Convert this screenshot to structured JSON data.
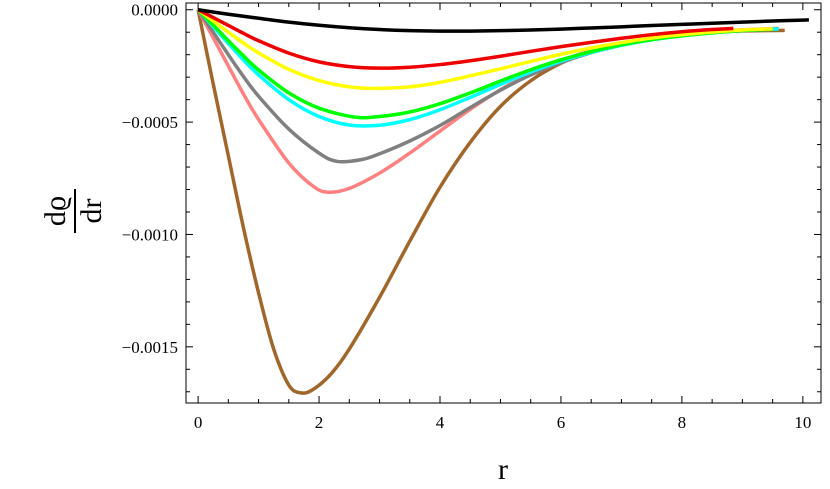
{
  "chart_data": {
    "type": "line",
    "title": "",
    "xlabel": "r",
    "ylabel_numerator": "dϱ",
    "ylabel_denominator": "dr",
    "xlim": [
      -0.2,
      10.3
    ],
    "ylim": [
      -0.00175,
      3e-05
    ],
    "xticks": [
      0,
      2,
      4,
      6,
      8,
      10
    ],
    "xtick_labels": [
      "0",
      "2",
      "4",
      "6",
      "8",
      "10"
    ],
    "yticks": [
      0.0,
      -0.0005,
      -0.001,
      -0.0015
    ],
    "ytick_labels": [
      "0.0000",
      "−0.0005",
      "−0.0010",
      "−0.0015"
    ],
    "grid": false,
    "legend": "none",
    "series": [
      {
        "color": "#000000",
        "x": [
          0,
          0.5,
          1,
          1.5,
          2,
          2.5,
          3,
          3.5,
          4,
          4.5,
          5,
          5.5,
          6,
          6.5,
          7,
          7.5,
          8,
          8.5,
          9,
          9.5,
          10,
          10.1
        ],
        "y": [
          0,
          -2e-05,
          -3.8e-05,
          -5.5e-05,
          -6.9e-05,
          -8e-05,
          -8.8e-05,
          -9.3e-05,
          -9.5e-05,
          -9.5e-05,
          -9.3e-05,
          -9e-05,
          -8.6e-05,
          -8.1e-05,
          -7.6e-05,
          -7e-05,
          -6.5e-05,
          -6e-05,
          -5.5e-05,
          -5e-05,
          -4.6e-05,
          -4.5e-05
        ]
      },
      {
        "color": "#ee0000",
        "x": [
          0,
          0.25,
          0.5,
          0.75,
          1,
          1.5,
          2,
          2.5,
          3,
          3.5,
          4,
          4.5,
          5,
          5.5,
          6,
          6.5,
          7,
          7.5,
          8,
          8.5,
          8.85
        ],
        "y": [
          0,
          -3.5e-05,
          -7e-05,
          -0.000105,
          -0.000138,
          -0.000193,
          -0.000232,
          -0.000253,
          -0.00026,
          -0.000256,
          -0.000244,
          -0.000227,
          -0.000207,
          -0.000185,
          -0.000164,
          -0.000145,
          -0.000127,
          -0.000111,
          -9.8e-05,
          -8.8e-05,
          -8.3e-05
        ]
      },
      {
        "color": "#ffff00",
        "x": [
          0,
          0.25,
          0.5,
          0.75,
          1,
          1.5,
          2,
          2.5,
          2.9,
          3.5,
          4,
          4.5,
          5,
          5.5,
          6,
          6.5,
          7,
          7.5,
          8,
          8.5,
          9,
          9.5
        ],
        "y": [
          0,
          -5e-05,
          -0.0001,
          -0.000148,
          -0.000192,
          -0.000265,
          -0.000315,
          -0.000343,
          -0.00035,
          -0.000343,
          -0.000323,
          -0.000294,
          -0.000263,
          -0.00023,
          -0.000198,
          -0.00017,
          -0.000146,
          -0.000126,
          -0.000111,
          -9.9e-05,
          -9e-05,
          -8.5e-05
        ]
      },
      {
        "color": "#00ff00",
        "x": [
          0,
          0.25,
          0.5,
          0.75,
          1,
          1.5,
          2,
          2.6,
          3,
          3.5,
          4,
          4.5,
          5,
          5.5,
          6,
          6.5,
          7,
          7.5,
          8,
          8.5,
          9,
          9.5
        ],
        "y": [
          0,
          -6.8e-05,
          -0.000138,
          -0.000205,
          -0.000268,
          -0.00037,
          -0.000438,
          -0.000478,
          -0.000475,
          -0.000455,
          -0.000418,
          -0.00037,
          -0.000317,
          -0.000267,
          -0.000223,
          -0.000186,
          -0.000156,
          -0.000133,
          -0.000116,
          -0.000103,
          -9.3e-05,
          -8.7e-05
        ]
      },
      {
        "color": "#00ffff",
        "x": [
          0,
          0.25,
          0.5,
          0.75,
          1,
          1.5,
          2,
          2.5,
          3,
          3.5,
          4,
          4.5,
          5,
          5.5,
          6,
          6.5,
          7,
          7.5,
          8,
          8.5,
          9,
          9.6
        ],
        "y": [
          0,
          -7.5e-05,
          -0.00015,
          -0.000223,
          -0.00029,
          -0.0004,
          -0.000475,
          -0.000513,
          -0.000514,
          -0.000489,
          -0.000445,
          -0.00039,
          -0.000332,
          -0.000277,
          -0.000229,
          -0.00019,
          -0.000158,
          -0.000134,
          -0.000116,
          -0.000102,
          -9.2e-05,
          -8.5e-05
        ]
      },
      {
        "color": "#808080",
        "x": [
          0,
          0.25,
          0.5,
          0.75,
          1,
          1.5,
          2,
          2.3,
          2.7,
          3,
          3.5,
          4,
          4.5,
          5,
          5.5,
          6,
          6.5,
          7,
          7.5,
          8,
          8.5,
          9,
          9.6
        ],
        "y": [
          0,
          -0.0001,
          -0.0002,
          -0.000297,
          -0.000385,
          -0.000531,
          -0.000638,
          -0.000675,
          -0.000667,
          -0.000641,
          -0.000584,
          -0.000515,
          -0.000435,
          -0.000358,
          -0.00029,
          -0.000235,
          -0.000191,
          -0.000158,
          -0.000133,
          -0.000115,
          -0.000102,
          -9.3e-05,
          -8.5e-05
        ]
      },
      {
        "color": "#ff8080",
        "x": [
          0,
          0.25,
          0.5,
          0.75,
          1,
          1.5,
          1.9,
          2.15,
          2.5,
          3,
          3.5,
          4,
          4.5,
          5,
          5.5,
          6,
          6.5,
          7,
          7.5,
          8,
          8.5,
          9,
          9.6
        ],
        "y": [
          0,
          -0.000125,
          -0.00025,
          -0.000375,
          -0.000488,
          -0.000682,
          -0.000785,
          -0.000812,
          -0.000795,
          -0.000727,
          -0.000638,
          -0.00054,
          -0.000443,
          -0.000356,
          -0.000283,
          -0.000226,
          -0.000182,
          -0.00015,
          -0.000126,
          -0.000109,
          -9.7e-05,
          -8.9e-05,
          -8.3e-05
        ]
      },
      {
        "color": "#a0662a",
        "x": [
          0,
          0.25,
          0.5,
          0.75,
          1,
          1.25,
          1.5,
          1.7,
          1.9,
          2.2,
          2.5,
          3,
          3.5,
          4,
          4.5,
          5,
          5.5,
          6,
          6.5,
          7,
          7.5,
          8,
          8.5,
          9,
          9.7
        ],
        "y": [
          0,
          -0.00033,
          -0.00065,
          -0.00097,
          -0.00126,
          -0.00151,
          -0.00167,
          -0.001705,
          -0.00169,
          -0.00162,
          -0.00151,
          -0.00128,
          -0.00103,
          -0.00079,
          -0.00059,
          -0.00043,
          -0.000316,
          -0.000238,
          -0.000185,
          -0.000149,
          -0.000126,
          -0.00011,
          -0.0001,
          -9.4e-05,
          -9.2e-05
        ]
      }
    ]
  }
}
